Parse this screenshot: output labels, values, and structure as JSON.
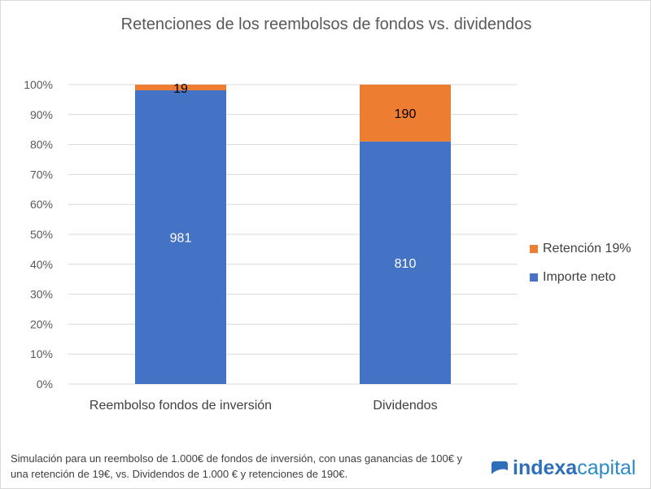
{
  "chart_data": {
    "type": "bar",
    "stacked": "100%",
    "title": "Retenciones de los reembolsos de fondos vs. dividendos",
    "categories": [
      "Reembolso fondos de inversión",
      "Dividendos"
    ],
    "series": [
      {
        "name": "Importe neto",
        "values": [
          981,
          810
        ],
        "color": "#4472c4",
        "label_color": "#ffffff"
      },
      {
        "name": "Retención 19%",
        "values": [
          19,
          190
        ],
        "color": "#ed7d31",
        "label_color": "#000000"
      }
    ],
    "yticks": [
      "0%",
      "10%",
      "20%",
      "30%",
      "40%",
      "50%",
      "60%",
      "70%",
      "80%",
      "90%",
      "100%"
    ],
    "ylim": [
      0,
      100
    ],
    "grid": true,
    "legend": "right"
  },
  "note": "Simulación para un reembolso de 1.000€ de fondos de inversión, con unas ganancias de 100€ y una retención de 19€, vs. Dividendos de 1.000 € y retenciones de 190€.",
  "logo": {
    "bold": "indexa",
    "light": "capital"
  }
}
